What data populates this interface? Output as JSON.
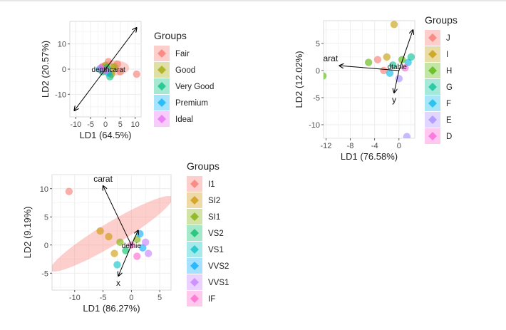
{
  "chart_data": [
    {
      "type": "scatter",
      "subtype": "lda-biplot",
      "xlabel": "LD1 (64.5%)",
      "ylabel": "LD2 (20.57%)",
      "xlim": [
        -12,
        12
      ],
      "ylim": [
        -19,
        19
      ],
      "xticks": [
        -10,
        -5,
        0,
        5,
        10
      ],
      "yticks": [
        -10,
        0,
        10
      ],
      "grid": true,
      "legend_title": "Groups",
      "legend_position": "right",
      "groups": [
        {
          "name": "Fair",
          "color": "#F8766D"
        },
        {
          "name": "Good",
          "color": "#A3A500"
        },
        {
          "name": "Very Good",
          "color": "#00BF7D"
        },
        {
          "name": "Premium",
          "color": "#00B0F6"
        },
        {
          "name": "Ideal",
          "color": "#E76BF3"
        }
      ],
      "loading_arrows": [
        {
          "x": 10.5,
          "y": 16.5,
          "label": ""
        },
        {
          "x": -10.5,
          "y": -16.5,
          "label": ""
        }
      ],
      "cluster_label": "depthcarat",
      "cluster_label_pos": {
        "x": 1,
        "y": 0
      },
      "ellipses": [
        {
          "group": "Fair",
          "cx": 3,
          "cy": 0.5,
          "rx": 5,
          "ry": 3
        },
        {
          "group": "Good",
          "cx": 1,
          "cy": 0,
          "rx": 3,
          "ry": 2.5
        }
      ],
      "points": [
        {
          "x": 10.5,
          "y": -2,
          "group": "Fair"
        },
        {
          "x": 4,
          "y": 2,
          "group": "Fair"
        },
        {
          "x": 5,
          "y": -1,
          "group": "Fair"
        },
        {
          "x": 1,
          "y": 3,
          "group": "Fair"
        },
        {
          "x": -1,
          "y": 1,
          "group": "Fair"
        },
        {
          "x": 2,
          "y": -2,
          "group": "Good"
        },
        {
          "x": 0,
          "y": 1.5,
          "group": "Good"
        },
        {
          "x": 3,
          "y": 1,
          "group": "Good"
        },
        {
          "x": 1.5,
          "y": -3,
          "group": "Very Good"
        },
        {
          "x": -1,
          "y": -1,
          "group": "Very Good"
        },
        {
          "x": 0.5,
          "y": 0.5,
          "group": "Very Good"
        },
        {
          "x": -2,
          "y": 0,
          "group": "Premium"
        },
        {
          "x": 1,
          "y": -1.5,
          "group": "Premium"
        },
        {
          "x": 0,
          "y": -0.5,
          "group": "Ideal"
        },
        {
          "x": -1.5,
          "y": 0.5,
          "group": "Ideal"
        }
      ]
    },
    {
      "type": "scatter",
      "subtype": "lda-biplot",
      "xlabel": "LD1 (76.58%)",
      "ylabel": "LD2 (12.02%)",
      "xlim": [
        -12.4,
        2.6
      ],
      "ylim": [
        -12.5,
        9.2
      ],
      "xticks": [
        -12,
        -8,
        -4,
        0
      ],
      "yticks": [
        -10,
        -5,
        0,
        5
      ],
      "grid": true,
      "legend_title": "Groups",
      "legend_position": "right",
      "groups": [
        {
          "name": "J",
          "color": "#F8766D"
        },
        {
          "name": "I",
          "color": "#C49A00"
        },
        {
          "name": "H",
          "color": "#53B400"
        },
        {
          "name": "G",
          "color": "#00C094"
        },
        {
          "name": "F",
          "color": "#00B6EB"
        },
        {
          "name": "E",
          "color": "#A58AFF"
        },
        {
          "name": "D",
          "color": "#FB61D7"
        }
      ],
      "loading_arrows": [
        {
          "x": 2.3,
          "y": 7.5,
          "label": ""
        },
        {
          "x": -9.8,
          "y": 0.9,
          "label": "arat"
        },
        {
          "x": -0.8,
          "y": -4.1,
          "label": "y"
        }
      ],
      "cluster_label": "dtable",
      "cluster_label_pos": {
        "x": -0.3,
        "y": 0.8
      },
      "ellipses": [],
      "points": [
        {
          "x": -0.8,
          "y": 8.5,
          "group": "I"
        },
        {
          "x": -12.5,
          "y": -1,
          "group": "H"
        },
        {
          "x": 1.3,
          "y": -12.2,
          "group": "E"
        },
        {
          "x": -3.5,
          "y": 2,
          "group": "J"
        },
        {
          "x": -5,
          "y": 1.5,
          "group": "H"
        },
        {
          "x": -2,
          "y": 2.5,
          "group": "I"
        },
        {
          "x": 1.5,
          "y": 1.5,
          "group": "F"
        },
        {
          "x": 2,
          "y": 2.5,
          "group": "G"
        },
        {
          "x": 0,
          "y": -1.5,
          "group": "E"
        },
        {
          "x": 1,
          "y": 0.5,
          "group": "D"
        },
        {
          "x": -1,
          "y": 1,
          "group": "G"
        },
        {
          "x": -2.5,
          "y": 0,
          "group": "J"
        },
        {
          "x": 0.5,
          "y": 2,
          "group": "H"
        },
        {
          "x": -1.5,
          "y": -0.5,
          "group": "F"
        }
      ]
    },
    {
      "type": "scatter",
      "subtype": "lda-biplot",
      "xlabel": "LD1 (86.27%)",
      "ylabel": "LD2 (9.19%)",
      "xlim": [
        -14,
        7
      ],
      "ylim": [
        -8,
        12.5
      ],
      "xticks": [
        -10,
        -5,
        0,
        5
      ],
      "yticks": [
        -5,
        0,
        5,
        10
      ],
      "grid": true,
      "legend_title": "Groups",
      "legend_position": "right",
      "groups": [
        {
          "name": "I1",
          "color": "#F8766D"
        },
        {
          "name": "SI2",
          "color": "#CD9600"
        },
        {
          "name": "SI1",
          "color": "#7CAE00"
        },
        {
          "name": "VS2",
          "color": "#00BE67"
        },
        {
          "name": "VS1",
          "color": "#00BFC4"
        },
        {
          "name": "VVS2",
          "color": "#00A9FF"
        },
        {
          "name": "VVS1",
          "color": "#C77CFF"
        },
        {
          "name": "IF",
          "color": "#FF61CC"
        }
      ],
      "loading_arrows": [
        {
          "x": -5,
          "y": 10.5,
          "label": "carat"
        },
        {
          "x": -2.3,
          "y": -5.5,
          "label": "x"
        },
        {
          "x": 1.2,
          "y": 2.6,
          "label": ""
        }
      ],
      "cluster_label": "dethie",
      "cluster_label_pos": {
        "x": 0,
        "y": 0
      },
      "ellipses": [
        {
          "group": "I1",
          "cx": -3.5,
          "cy": 2,
          "rx": 12.5,
          "ry": 2,
          "angle": 31
        }
      ],
      "points": [
        {
          "x": -11,
          "y": 9.5,
          "group": "I1"
        },
        {
          "x": -5.5,
          "y": 2.5,
          "group": "SI2"
        },
        {
          "x": -4,
          "y": 1.5,
          "group": "SI2"
        },
        {
          "x": -3,
          "y": -1.5,
          "group": "SI2"
        },
        {
          "x": -2,
          "y": 0.5,
          "group": "SI1"
        },
        {
          "x": 1,
          "y": 1,
          "group": "SI1"
        },
        {
          "x": -1,
          "y": -1,
          "group": "VS2"
        },
        {
          "x": -2.5,
          "y": -3.5,
          "group": "VS1"
        },
        {
          "x": 1.5,
          "y": 2,
          "group": "VVS2"
        },
        {
          "x": 2,
          "y": -0.5,
          "group": "VVS2"
        },
        {
          "x": 3,
          "y": -1.5,
          "group": "VVS1"
        },
        {
          "x": 2.5,
          "y": 0.5,
          "group": "VVS1"
        },
        {
          "x": 0,
          "y": 0,
          "group": "IF"
        },
        {
          "x": 1,
          "y": -2,
          "group": "IF"
        }
      ]
    }
  ]
}
